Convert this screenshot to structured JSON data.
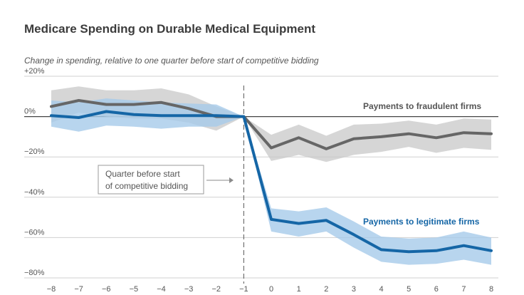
{
  "chart_data": {
    "type": "line",
    "title": "Medicare Spending on Durable Medical Equipment",
    "subtitle": "Change in spending, relative to one quarter before start of competitive bidding",
    "x": [
      -8,
      -7,
      -6,
      -5,
      -4,
      -3,
      -2,
      -1,
      0,
      1,
      2,
      3,
      4,
      5,
      6,
      7,
      8
    ],
    "x_tick_labels": [
      "−8",
      "−7",
      "−6",
      "−5",
      "−4",
      "−3",
      "−2",
      "−1",
      "0",
      "1",
      "2",
      "3",
      "4",
      "5",
      "6",
      "7",
      "8"
    ],
    "y_ticks": [
      20,
      0,
      -20,
      -40,
      -60,
      -80
    ],
    "y_tick_labels": [
      "+20%",
      "0%",
      "−20%",
      "−40%",
      "−60%",
      "−80%"
    ],
    "ylim": [
      -80,
      20
    ],
    "grid": true,
    "reference_line_x": -1,
    "series": [
      {
        "name": "Payments to fraudulent firms",
        "color": "#666666",
        "band_color": "#c8c8c8",
        "values": [
          5,
          8,
          6,
          6,
          7,
          4,
          0,
          0,
          -15.5,
          -10.5,
          -16,
          -11,
          -10,
          -8.5,
          -10.5,
          -8,
          -8.5
        ],
        "lower": [
          -3,
          2,
          0,
          -1,
          -1,
          -3,
          -7,
          0,
          -22,
          -19,
          -22.5,
          -19,
          -17.5,
          -15,
          -18,
          -15.5,
          -16.5
        ],
        "upper": [
          13,
          15,
          13,
          13,
          14,
          11,
          5,
          0,
          -9,
          -4,
          -9.5,
          -4,
          -3.5,
          -2,
          -4,
          -1,
          -1.5
        ]
      },
      {
        "name": "Payments to legitimate firms",
        "color": "#1566a6",
        "band_color": "#a6cbea",
        "values": [
          0.5,
          -0.5,
          2.5,
          1,
          0.5,
          0.5,
          0.5,
          0,
          -51,
          -53,
          -51.5,
          -58.5,
          -66,
          -67,
          -66.5,
          -64,
          -66.5
        ],
        "lower": [
          -5,
          -7.5,
          -4.5,
          -5,
          -6,
          -5,
          -5,
          0,
          -57,
          -59.5,
          -57,
          -65,
          -72,
          -73.5,
          -73,
          -71,
          -73.5
        ],
        "upper": [
          8,
          7,
          9,
          8,
          7,
          6.5,
          6,
          0,
          -45.5,
          -47,
          -45,
          -52,
          -59.5,
          -60.5,
          -60,
          -57,
          -60
        ]
      }
    ],
    "annotation": {
      "lines": [
        "Quarter before start",
        "of competitive bidding"
      ]
    }
  }
}
